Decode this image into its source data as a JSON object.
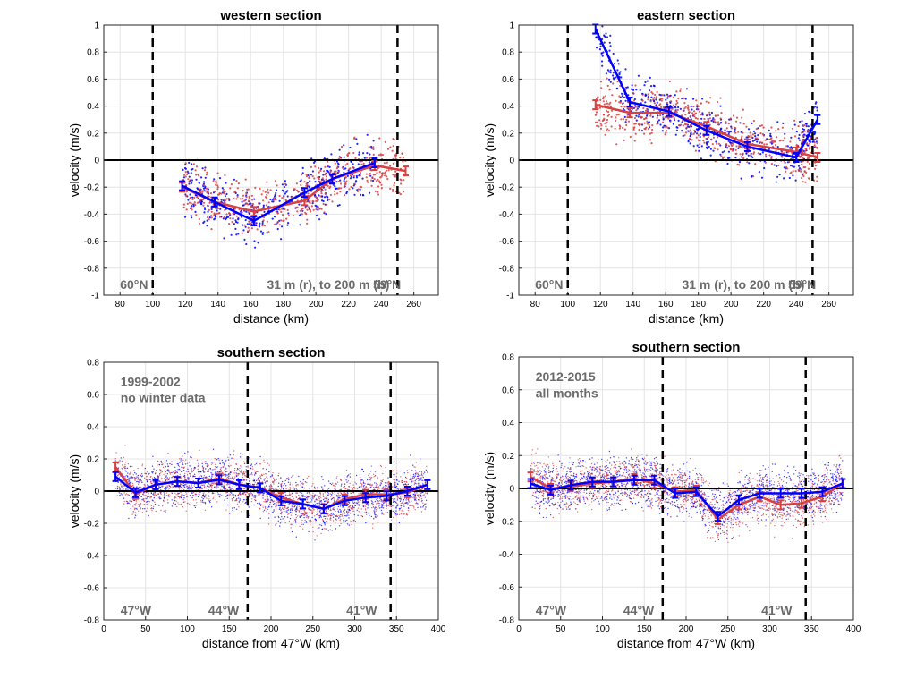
{
  "chart_data": [
    {
      "type": "line",
      "title": "western section",
      "xlabel": "distance (km)",
      "ylabel": "velocity (m/s)",
      "xlim": [
        70,
        275
      ],
      "ylim": [
        -1,
        1
      ],
      "xticks": [
        "80",
        "100",
        "120",
        "140",
        "160",
        "180",
        "200",
        "220",
        "240",
        "260"
      ],
      "yticks": [
        "-1",
        "-0.8",
        "-0.6",
        "-0.4",
        "-0.2",
        "0",
        "0.2",
        "0.4",
        "0.6",
        "0.8",
        "1"
      ],
      "grid": true,
      "vlines": [
        100,
        250
      ],
      "annotations": [
        {
          "text": "60°N",
          "x": 80,
          "y": -0.92
        },
        {
          "text": "31 m (r), to 200 m (b)",
          "x": 170,
          "y": -0.92
        },
        {
          "text": "59°N",
          "x": 235,
          "y": -0.92
        }
      ],
      "series": [
        {
          "color": "#0000ff",
          "x": [
            118,
            138,
            162,
            193,
            210,
            236
          ],
          "values": [
            -0.19,
            -0.31,
            -0.45,
            -0.24,
            -0.14,
            -0.02
          ]
        },
        {
          "color": "#d94040",
          "x": [
            118,
            138,
            162,
            193,
            210,
            236,
            255
          ],
          "values": [
            -0.2,
            -0.31,
            -0.38,
            -0.3,
            -0.14,
            -0.04,
            -0.08
          ]
        }
      ]
    },
    {
      "type": "line",
      "title": "eastern section",
      "xlabel": "distance (km)",
      "ylabel": "velocity (m/s)",
      "xlim": [
        70,
        275
      ],
      "ylim": [
        -1,
        1
      ],
      "xticks": [
        "80",
        "100",
        "120",
        "140",
        "160",
        "180",
        "200",
        "220",
        "240",
        "260"
      ],
      "yticks": [
        "-1",
        "-0.8",
        "-0.6",
        "-0.4",
        "-0.2",
        "0",
        "0.2",
        "0.4",
        "0.6",
        "0.8",
        "1"
      ],
      "grid": true,
      "vlines": [
        100,
        250
      ],
      "annotations": [
        {
          "text": "60°N",
          "x": 80,
          "y": -0.92
        },
        {
          "text": "31 m (r), to 200 m (b)",
          "x": 170,
          "y": -0.92
        },
        {
          "text": "59°N",
          "x": 235,
          "y": -0.92
        }
      ],
      "series": [
        {
          "color": "#0000ff",
          "x": [
            117,
            138,
            162,
            185,
            210,
            240,
            253
          ],
          "values": [
            0.97,
            0.43,
            0.36,
            0.22,
            0.1,
            0.02,
            0.3
          ]
        },
        {
          "color": "#d94040",
          "x": [
            117,
            138,
            162,
            185,
            210,
            240,
            253
          ],
          "values": [
            0.41,
            0.35,
            0.35,
            0.25,
            0.12,
            0.06,
            0.02
          ]
        }
      ]
    },
    {
      "type": "line",
      "title": "southern section",
      "xlabel": "distance from 47°W (km)",
      "ylabel": "velocity (m/s)",
      "xlim": [
        0,
        400
      ],
      "ylim": [
        -0.8,
        0.8
      ],
      "xticks": [
        "0",
        "50",
        "100",
        "150",
        "200",
        "250",
        "300",
        "350",
        "400"
      ],
      "yticks": [
        "-0.8",
        "-0.6",
        "-0.4",
        "-0.2",
        "0",
        "0.2",
        "0.4",
        "0.6",
        "0.8"
      ],
      "grid": true,
      "vlines": [
        172,
        343
      ],
      "annotations": [
        {
          "text": "1999-2002",
          "x": 20,
          "y": 0.68
        },
        {
          "text": "no winter data",
          "x": 20,
          "y": 0.58
        },
        {
          "text": "47°W",
          "x": 20,
          "y": -0.74
        },
        {
          "text": "44°W",
          "x": 125,
          "y": -0.74
        },
        {
          "text": "41°W",
          "x": 290,
          "y": -0.74
        }
      ],
      "series": [
        {
          "color": "#0000ff",
          "x": [
            14,
            38,
            62,
            88,
            113,
            138,
            162,
            187,
            212,
            238,
            263,
            288,
            313,
            338,
            363,
            387
          ],
          "values": [
            0.09,
            -0.01,
            0.04,
            0.06,
            0.05,
            0.07,
            0.04,
            0.02,
            -0.06,
            -0.08,
            -0.11,
            -0.06,
            -0.04,
            -0.03,
            0.0,
            0.04
          ]
        },
        {
          "color": "#d94040",
          "x": [
            14,
            38,
            62,
            88,
            113,
            138,
            162,
            187,
            212,
            238,
            263,
            288,
            313,
            338,
            363,
            387
          ],
          "values": [
            0.15,
            -0.02,
            0.04,
            0.06,
            0.05,
            0.08,
            0.04,
            0.02,
            -0.04,
            -0.08,
            -0.11,
            -0.05,
            -0.02,
            -0.02,
            -0.01,
            0.04
          ]
        }
      ]
    },
    {
      "type": "line",
      "title": "southern section",
      "xlabel": "distance from 47°W (km)",
      "ylabel": "velocity (m/s)",
      "xlim": [
        0,
        400
      ],
      "ylim": [
        -0.8,
        0.8
      ],
      "xticks": [
        "0",
        "50",
        "100",
        "150",
        "200",
        "250",
        "300",
        "350",
        "400"
      ],
      "yticks": [
        "-0.8",
        "-0.6",
        "-0.4",
        "-0.2",
        "0",
        "0.2",
        "0.4",
        "0.6",
        "0.8"
      ],
      "grid": true,
      "vlines": [
        172,
        343
      ],
      "annotations": [
        {
          "text": "2012-2015",
          "x": 20,
          "y": 0.68
        },
        {
          "text": "all months",
          "x": 20,
          "y": 0.58
        },
        {
          "text": "47°W",
          "x": 20,
          "y": -0.74
        },
        {
          "text": "44°W",
          "x": 125,
          "y": -0.74
        },
        {
          "text": "41°W",
          "x": 290,
          "y": -0.74
        }
      ],
      "series": [
        {
          "color": "#0000ff",
          "x": [
            14,
            38,
            62,
            88,
            113,
            138,
            162,
            187,
            212,
            238,
            263,
            288,
            313,
            338,
            363,
            387
          ],
          "values": [
            0.03,
            -0.01,
            0.02,
            0.04,
            0.04,
            0.05,
            0.05,
            -0.03,
            -0.02,
            -0.17,
            -0.07,
            -0.03,
            -0.03,
            -0.03,
            -0.02,
            0.03
          ]
        },
        {
          "color": "#d94040",
          "x": [
            14,
            38,
            62,
            88,
            113,
            138,
            162,
            187,
            212,
            238,
            263,
            288,
            313,
            338,
            363,
            387
          ],
          "values": [
            0.07,
            0.0,
            0.01,
            0.03,
            0.04,
            0.06,
            0.03,
            -0.02,
            -0.01,
            -0.19,
            -0.1,
            -0.05,
            -0.1,
            -0.09,
            -0.05,
            0.03
          ]
        }
      ]
    }
  ]
}
